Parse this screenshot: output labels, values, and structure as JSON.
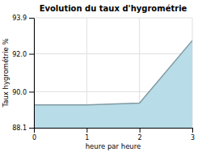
{
  "chart_data": {
    "type": "area",
    "title": "Evolution du taux d'hygrométrie",
    "xlabel": "heure par heure",
    "ylabel": "Taux hygrométrie %",
    "x": [
      0,
      1,
      2,
      3
    ],
    "values": [
      89.3,
      89.3,
      89.4,
      92.7
    ],
    "color": "#b8dce8",
    "xlim": [
      0,
      3
    ],
    "ylim": [
      88.1,
      93.9
    ],
    "xticks": [
      0,
      1,
      2,
      3
    ],
    "yticks": [
      88.1,
      {
        "value": 90.0,
        "label": "90.0"
      },
      {
        "value": 92.0,
        "label": "92.0"
      },
      93.9
    ],
    "grid": true
  }
}
